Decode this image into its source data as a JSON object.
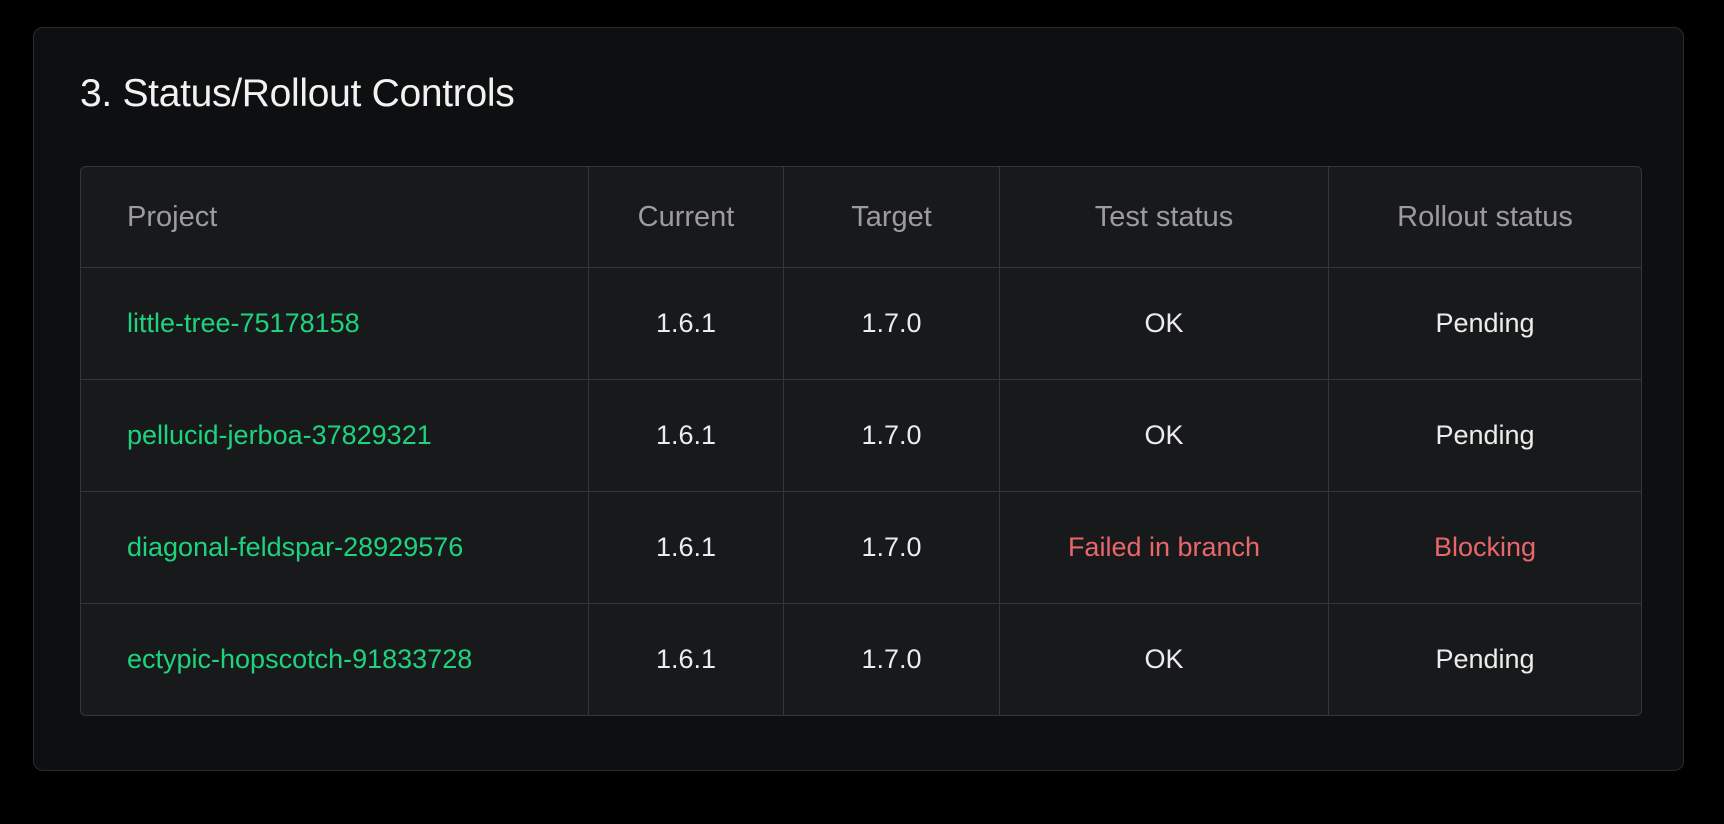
{
  "section": {
    "title": "3. Status/Rollout Controls"
  },
  "colors": {
    "link": "#1ed37e",
    "error": "#e8676b"
  },
  "table": {
    "headers": [
      "Project",
      "Current",
      "Target",
      "Test status",
      "Rollout status"
    ],
    "rows": [
      {
        "project": "little-tree-75178158",
        "current": "1.6.1",
        "target": "1.7.0",
        "test_status": "OK",
        "rollout_status": "Pending",
        "failed": false
      },
      {
        "project": "pellucid-jerboa-37829321",
        "current": "1.6.1",
        "target": "1.7.0",
        "test_status": "OK",
        "rollout_status": "Pending",
        "failed": false
      },
      {
        "project": "diagonal-feldspar-28929576",
        "current": "1.6.1",
        "target": "1.7.0",
        "test_status": "Failed in branch",
        "rollout_status": "Blocking",
        "failed": true
      },
      {
        "project": "ectypic-hopscotch-91833728",
        "current": "1.6.1",
        "target": "1.7.0",
        "test_status": "OK",
        "rollout_status": "Pending",
        "failed": false
      }
    ]
  }
}
